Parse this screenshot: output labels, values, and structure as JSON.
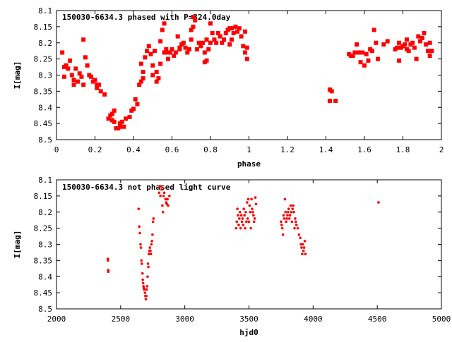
{
  "chart_data": [
    {
      "type": "scatter",
      "title": "150030-6634.3 phased with P=324.0day",
      "xlabel": "phase",
      "ylabel": "I[mag]",
      "xlim": [
        0,
        2
      ],
      "ylim": [
        8.5,
        8.1
      ],
      "y_inverted": true,
      "grid": false,
      "xticks": [
        "0",
        "0.2",
        "0.4",
        "0.6",
        "0.8",
        "1",
        "1.2",
        "1.4",
        "1.6",
        "1.8",
        "2"
      ],
      "yticks": [
        "8.1",
        "8.15",
        "8.2",
        "8.25",
        "8.3",
        "8.35",
        "8.4",
        "8.45",
        "8.5"
      ],
      "marker_color": "#ff0000",
      "points": [
        [
          0.03,
          8.23
        ],
        [
          0.04,
          8.275
        ],
        [
          0.04,
          8.305
        ],
        [
          0.05,
          8.27
        ],
        [
          0.06,
          8.28
        ],
        [
          0.07,
          8.255
        ],
        [
          0.08,
          8.3
        ],
        [
          0.09,
          8.315
        ],
        [
          0.09,
          8.33
        ],
        [
          0.1,
          8.28
        ],
        [
          0.11,
          8.32
        ],
        [
          0.12,
          8.295
        ],
        [
          0.13,
          8.305
        ],
        [
          0.14,
          8.19
        ],
        [
          0.14,
          8.33
        ],
        [
          0.15,
          8.245
        ],
        [
          0.16,
          8.27
        ],
        [
          0.17,
          8.3
        ],
        [
          0.18,
          8.305
        ],
        [
          0.19,
          8.32
        ],
        [
          0.2,
          8.315
        ],
        [
          0.21,
          8.34
        ],
        [
          0.21,
          8.33
        ],
        [
          0.22,
          8.33
        ],
        [
          0.23,
          8.35
        ],
        [
          0.25,
          8.36
        ],
        [
          0.27,
          8.435
        ],
        [
          0.28,
          8.425
        ],
        [
          0.29,
          8.42
        ],
        [
          0.29,
          8.44
        ],
        [
          0.3,
          8.445
        ],
        [
          0.3,
          8.41
        ],
        [
          0.31,
          8.465
        ],
        [
          0.32,
          8.465
        ],
        [
          0.33,
          8.46
        ],
        [
          0.33,
          8.45
        ],
        [
          0.34,
          8.445
        ],
        [
          0.35,
          8.46
        ],
        [
          0.36,
          8.435
        ],
        [
          0.38,
          8.43
        ],
        [
          0.39,
          8.41
        ],
        [
          0.4,
          8.405
        ],
        [
          0.41,
          8.375
        ],
        [
          0.42,
          8.39
        ],
        [
          0.43,
          8.33
        ],
        [
          0.44,
          8.265
        ],
        [
          0.44,
          8.32
        ],
        [
          0.45,
          8.31
        ],
        [
          0.45,
          8.29
        ],
        [
          0.46,
          8.245
        ],
        [
          0.47,
          8.225
        ],
        [
          0.48,
          8.21
        ],
        [
          0.49,
          8.235
        ],
        [
          0.5,
          8.27
        ],
        [
          0.5,
          8.3
        ],
        [
          0.51,
          8.225
        ],
        [
          0.52,
          8.29
        ],
        [
          0.52,
          8.32
        ],
        [
          0.53,
          8.31
        ],
        [
          0.54,
          8.265
        ],
        [
          0.54,
          8.195
        ],
        [
          0.55,
          8.16
        ],
        [
          0.56,
          8.14
        ],
        [
          0.56,
          8.23
        ],
        [
          0.57,
          8.22
        ],
        [
          0.58,
          8.25
        ],
        [
          0.58,
          8.23
        ],
        [
          0.59,
          8.23
        ],
        [
          0.6,
          8.22
        ],
        [
          0.61,
          8.24
        ],
        [
          0.62,
          8.23
        ],
        [
          0.63,
          8.18
        ],
        [
          0.64,
          8.22
        ],
        [
          0.64,
          8.215
        ],
        [
          0.65,
          8.205
        ],
        [
          0.66,
          8.2
        ],
        [
          0.67,
          8.215
        ],
        [
          0.68,
          8.23
        ],
        [
          0.69,
          8.22
        ],
        [
          0.7,
          8.19
        ],
        [
          0.7,
          8.16
        ],
        [
          0.71,
          8.15
        ],
        [
          0.71,
          8.12
        ],
        [
          0.72,
          8.13
        ],
        [
          0.73,
          8.22
        ],
        [
          0.74,
          8.2
        ],
        [
          0.75,
          8.21
        ],
        [
          0.76,
          8.2
        ],
        [
          0.77,
          8.23
        ],
        [
          0.77,
          8.26
        ],
        [
          0.78,
          8.255
        ],
        [
          0.78,
          8.19
        ],
        [
          0.79,
          8.22
        ],
        [
          0.8,
          8.14
        ],
        [
          0.8,
          8.2
        ],
        [
          0.81,
          8.17
        ],
        [
          0.82,
          8.19
        ],
        [
          0.83,
          8.2
        ],
        [
          0.84,
          8.17
        ],
        [
          0.85,
          8.18
        ],
        [
          0.86,
          8.2
        ],
        [
          0.87,
          8.19
        ],
        [
          0.88,
          8.17
        ],
        [
          0.89,
          8.16
        ],
        [
          0.9,
          8.155
        ],
        [
          0.9,
          8.205
        ],
        [
          0.91,
          8.19
        ],
        [
          0.91,
          8.155
        ],
        [
          0.92,
          8.17
        ],
        [
          0.93,
          8.15
        ],
        [
          0.94,
          8.165
        ],
        [
          0.95,
          8.155
        ],
        [
          0.96,
          8.18
        ],
        [
          0.97,
          8.21
        ],
        [
          0.98,
          8.165
        ],
        [
          0.98,
          8.23
        ],
        [
          0.99,
          8.215
        ],
        [
          0.99,
          8.25
        ],
        [
          1.42,
          8.345
        ],
        [
          1.42,
          8.38
        ],
        [
          1.43,
          8.35
        ],
        [
          1.45,
          8.38
        ],
        [
          1.52,
          8.235
        ],
        [
          1.53,
          8.24
        ],
        [
          1.54,
          8.24
        ],
        [
          1.55,
          8.23
        ],
        [
          1.56,
          8.205
        ],
        [
          1.57,
          8.23
        ],
        [
          1.58,
          8.26
        ],
        [
          1.59,
          8.23
        ],
        [
          1.6,
          8.27
        ],
        [
          1.61,
          8.235
        ],
        [
          1.62,
          8.255
        ],
        [
          1.63,
          8.22
        ],
        [
          1.64,
          8.225
        ],
        [
          1.65,
          8.16
        ],
        [
          1.66,
          8.2
        ],
        [
          1.67,
          8.25
        ],
        [
          1.7,
          8.205
        ],
        [
          1.72,
          8.195
        ],
        [
          1.76,
          8.22
        ],
        [
          1.77,
          8.215
        ],
        [
          1.78,
          8.255
        ],
        [
          1.78,
          8.2
        ],
        [
          1.79,
          8.215
        ],
        [
          1.8,
          8.21
        ],
        [
          1.81,
          8.205
        ],
        [
          1.82,
          8.19
        ],
        [
          1.82,
          8.22
        ],
        [
          1.83,
          8.225
        ],
        [
          1.84,
          8.205
        ],
        [
          1.85,
          8.2
        ],
        [
          1.86,
          8.215
        ],
        [
          1.87,
          8.25
        ],
        [
          1.88,
          8.18
        ],
        [
          1.89,
          8.195
        ],
        [
          1.9,
          8.185
        ],
        [
          1.91,
          8.17
        ],
        [
          1.92,
          8.205
        ],
        [
          1.93,
          8.225
        ],
        [
          1.94,
          8.24
        ],
        [
          1.94,
          8.2
        ],
        [
          1.95,
          8.225
        ]
      ]
    },
    {
      "type": "scatter",
      "title": "150030-6634.3 not phased light curve",
      "xlabel": "hjd0",
      "ylabel": "I[mag]",
      "xlim": [
        2000,
        5000
      ],
      "ylim": [
        8.5,
        8.1
      ],
      "y_inverted": true,
      "grid": false,
      "xticks": [
        "2000",
        "2500",
        "3000",
        "3500",
        "4000",
        "4500",
        "5000"
      ],
      "yticks": [
        "8.1",
        "8.15",
        "8.2",
        "8.25",
        "8.3",
        "8.35",
        "8.4",
        "8.45",
        "8.5"
      ],
      "marker_color": "#ff0000",
      "points": [
        [
          2400,
          8.345
        ],
        [
          2401,
          8.35
        ],
        [
          2403,
          8.38
        ],
        [
          2404,
          8.385
        ],
        [
          2640,
          8.19
        ],
        [
          2645,
          8.245
        ],
        [
          2650,
          8.265
        ],
        [
          2655,
          8.3
        ],
        [
          2658,
          8.31
        ],
        [
          2662,
          8.35
        ],
        [
          2665,
          8.36
        ],
        [
          2670,
          8.39
        ],
        [
          2672,
          8.41
        ],
        [
          2675,
          8.42
        ],
        [
          2678,
          8.43
        ],
        [
          2680,
          8.435
        ],
        [
          2683,
          8.44
        ],
        [
          2686,
          8.44
        ],
        [
          2690,
          8.45
        ],
        [
          2693,
          8.46
        ],
        [
          2696,
          8.47
        ],
        [
          2700,
          8.46
        ],
        [
          2703,
          8.44
        ],
        [
          2706,
          8.43
        ],
        [
          2710,
          8.4
        ],
        [
          2713,
          8.36
        ],
        [
          2716,
          8.37
        ],
        [
          2720,
          8.33
        ],
        [
          2724,
          8.32
        ],
        [
          2728,
          8.31
        ],
        [
          2732,
          8.32
        ],
        [
          2736,
          8.33
        ],
        [
          2740,
          8.3
        ],
        [
          2744,
          8.29
        ],
        [
          2748,
          8.27
        ],
        [
          2752,
          8.23
        ],
        [
          2756,
          8.22
        ],
        [
          2800,
          8.14
        ],
        [
          2805,
          8.12
        ],
        [
          2810,
          8.15
        ],
        [
          2815,
          8.12
        ],
        [
          2820,
          8.13
        ],
        [
          2825,
          8.18
        ],
        [
          2830,
          8.2
        ],
        [
          2835,
          8.15
        ],
        [
          2840,
          8.14
        ],
        [
          2850,
          8.16
        ],
        [
          2855,
          8.17
        ],
        [
          2860,
          8.175
        ],
        [
          2865,
          8.16
        ],
        [
          2870,
          8.18
        ],
        [
          2880,
          8.15
        ],
        [
          3400,
          8.25
        ],
        [
          3405,
          8.23
        ],
        [
          3410,
          8.19
        ],
        [
          3415,
          8.21
        ],
        [
          3420,
          8.24
        ],
        [
          3425,
          8.22
        ],
        [
          3430,
          8.2
        ],
        [
          3435,
          8.25
        ],
        [
          3440,
          8.21
        ],
        [
          3445,
          8.23
        ],
        [
          3450,
          8.22
        ],
        [
          3455,
          8.24
        ],
        [
          3460,
          8.19
        ],
        [
          3465,
          8.21
        ],
        [
          3470,
          8.25
        ],
        [
          3475,
          8.2
        ],
        [
          3480,
          8.23
        ],
        [
          3485,
          8.17
        ],
        [
          3490,
          8.22
        ],
        [
          3495,
          8.16
        ],
        [
          3500,
          8.23
        ],
        [
          3505,
          8.18
        ],
        [
          3510,
          8.2
        ],
        [
          3515,
          8.25
        ],
        [
          3520,
          8.16
        ],
        [
          3525,
          8.19
        ],
        [
          3530,
          8.2
        ],
        [
          3535,
          8.21
        ],
        [
          3540,
          8.23
        ],
        [
          3545,
          8.22
        ],
        [
          3550,
          8.155
        ],
        [
          3555,
          8.175
        ],
        [
          3750,
          8.23
        ],
        [
          3755,
          8.24
        ],
        [
          3760,
          8.25
        ],
        [
          3765,
          8.27
        ],
        [
          3770,
          8.21
        ],
        [
          3775,
          8.22
        ],
        [
          3780,
          8.16
        ],
        [
          3785,
          8.2
        ],
        [
          3790,
          8.23
        ],
        [
          3795,
          8.22
        ],
        [
          3800,
          8.21
        ],
        [
          3805,
          8.2
        ],
        [
          3810,
          8.19
        ],
        [
          3815,
          8.22
        ],
        [
          3820,
          8.21
        ],
        [
          3825,
          8.18
        ],
        [
          3830,
          8.2
        ],
        [
          3835,
          8.23
        ],
        [
          3840,
          8.19
        ],
        [
          3845,
          8.18
        ],
        [
          3850,
          8.2
        ],
        [
          3855,
          8.25
        ],
        [
          3860,
          8.22
        ],
        [
          3865,
          8.23
        ],
        [
          3870,
          8.24
        ],
        [
          3880,
          8.25
        ],
        [
          3890,
          8.27
        ],
        [
          3900,
          8.28
        ],
        [
          3905,
          8.3
        ],
        [
          3910,
          8.31
        ],
        [
          3915,
          8.33
        ],
        [
          3920,
          8.3
        ],
        [
          3925,
          8.32
        ],
        [
          3930,
          8.31
        ],
        [
          3935,
          8.29
        ],
        [
          3940,
          8.33
        ],
        [
          4510,
          8.17
        ]
      ]
    }
  ]
}
